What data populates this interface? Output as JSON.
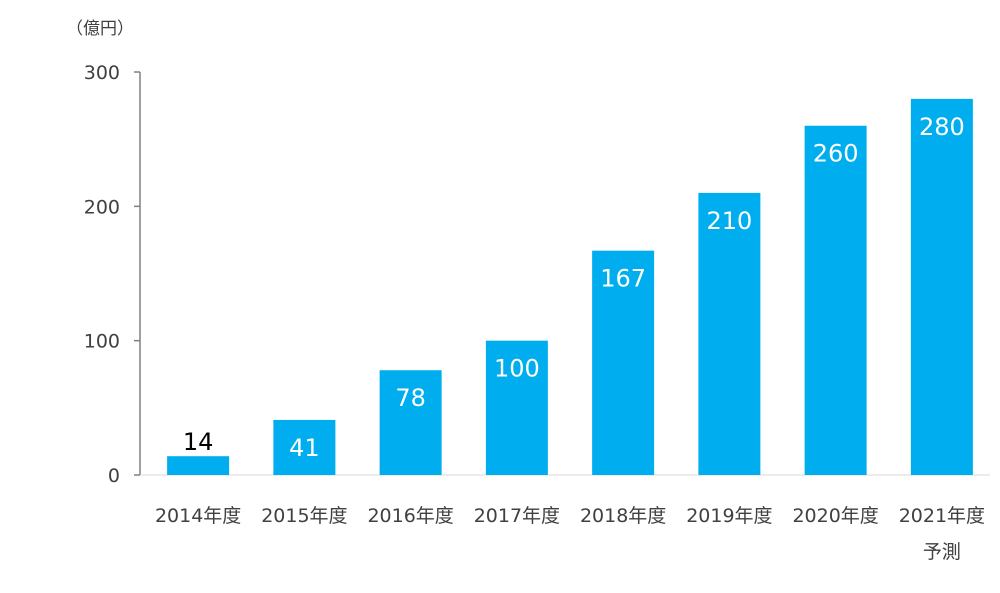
{
  "chart_data": {
    "type": "bar",
    "unit_label": "（億円）",
    "categories": [
      "2014年度",
      "2015年度",
      "2016年度",
      "2017年度",
      "2018年度",
      "2019年度",
      "2020年度",
      "2021年度"
    ],
    "category_sublabels": [
      "",
      "",
      "",
      "",
      "",
      "",
      "",
      "予測"
    ],
    "values": [
      14,
      41,
      78,
      100,
      167,
      210,
      260,
      280
    ],
    "y_ticks": [
      0,
      100,
      200,
      300
    ],
    "ylim": [
      0,
      300
    ],
    "bar_color": "#00AEEF",
    "label_color_inside": "#ffffff",
    "label_color_outside": "#000000",
    "grid": false,
    "legend": "none"
  }
}
